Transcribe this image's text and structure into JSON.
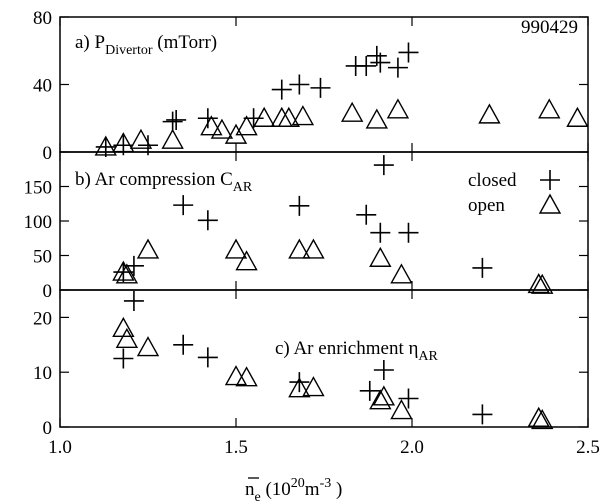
{
  "chart_data": [
    {
      "type": "scatter",
      "title": [
        "a) P",
        "Divertor",
        " (mTorr)"
      ],
      "annotation": "990429",
      "ylim": [
        0,
        80
      ],
      "yticks": [
        0,
        40,
        80
      ],
      "series": [
        {
          "marker": "plus",
          "color": "#000000",
          "x": [
            1.13,
            1.18,
            1.25,
            1.32,
            1.33,
            1.42,
            1.55,
            1.63,
            1.68,
            1.74,
            1.84,
            1.87,
            1.9,
            1.91,
            1.96,
            1.99
          ],
          "values": [
            3,
            4,
            4,
            18,
            19,
            20,
            20,
            37,
            40,
            38,
            51,
            51,
            57,
            53,
            50,
            59
          ]
        },
        {
          "marker": "triangle",
          "color": "#000000",
          "x": [
            1.13,
            1.18,
            1.23,
            1.32,
            1.43,
            1.46,
            1.5,
            1.53,
            1.58,
            1.63,
            1.65,
            1.69,
            1.83,
            1.9,
            1.96,
            2.22,
            2.39,
            2.47
          ],
          "values": [
            3,
            5,
            7,
            7,
            15,
            13,
            10,
            15,
            20,
            20,
            20,
            21,
            23,
            19,
            25,
            22,
            25,
            20
          ]
        }
      ]
    },
    {
      "type": "scatter",
      "title": [
        "b) Ar compression C",
        "AR"
      ],
      "legend": "upper right",
      "ylim": [
        0,
        200
      ],
      "yticks": [
        0,
        50,
        100,
        150
      ],
      "series": [
        {
          "name": "closed",
          "marker": "plus",
          "color": "#000000",
          "x": [
            1.18,
            1.21,
            1.35,
            1.42,
            1.68,
            1.87,
            1.92,
            1.91,
            1.99,
            2.2
          ],
          "values": [
            26,
            35,
            123,
            101,
            122,
            109,
            181,
            83,
            83,
            32
          ]
        },
        {
          "name": "open",
          "marker": "triangle",
          "color": "#000000",
          "x": [
            1.18,
            1.19,
            1.25,
            1.5,
            1.53,
            1.68,
            1.72,
            1.91,
            1.97,
            2.36,
            2.37
          ],
          "values": [
            26,
            22,
            58,
            58,
            41,
            58,
            58,
            46,
            22,
            8,
            7
          ]
        }
      ]
    },
    {
      "type": "scatter",
      "title": [
        "c) Ar enrichment η",
        "AR"
      ],
      "ylim": [
        0,
        25
      ],
      "yticks": [
        0,
        10,
        20
      ],
      "series": [
        {
          "marker": "plus",
          "color": "#000000",
          "x": [
            1.18,
            1.21,
            1.35,
            1.42,
            1.68,
            1.88,
            1.92,
            1.99,
            2.2
          ],
          "values": [
            12.5,
            23,
            15,
            12.7,
            8.2,
            6.6,
            10.4,
            5.2,
            2.3
          ]
        },
        {
          "marker": "triangle",
          "color": "#000000",
          "x": [
            1.18,
            1.19,
            1.25,
            1.5,
            1.53,
            1.68,
            1.72,
            1.91,
            1.92,
            1.97,
            2.36,
            2.37
          ],
          "values": [
            18,
            16,
            14.5,
            9.2,
            9,
            7,
            7.2,
            4.8,
            5.5,
            3,
            1.6,
            1.2
          ]
        }
      ]
    }
  ],
  "shared_x_axis": {
    "xlim": [
      1,
      2.5
    ],
    "xticks": [
      {
        "value": 1,
        "label": "1.0"
      },
      {
        "value": 1.5,
        "label": "1.5"
      },
      {
        "value": 2,
        "label": "2.0"
      },
      {
        "value": 2.5,
        "label": "2.5"
      }
    ],
    "label": [
      "n",
      "e",
      " (10",
      "20",
      "m",
      "-3",
      " )"
    ]
  }
}
